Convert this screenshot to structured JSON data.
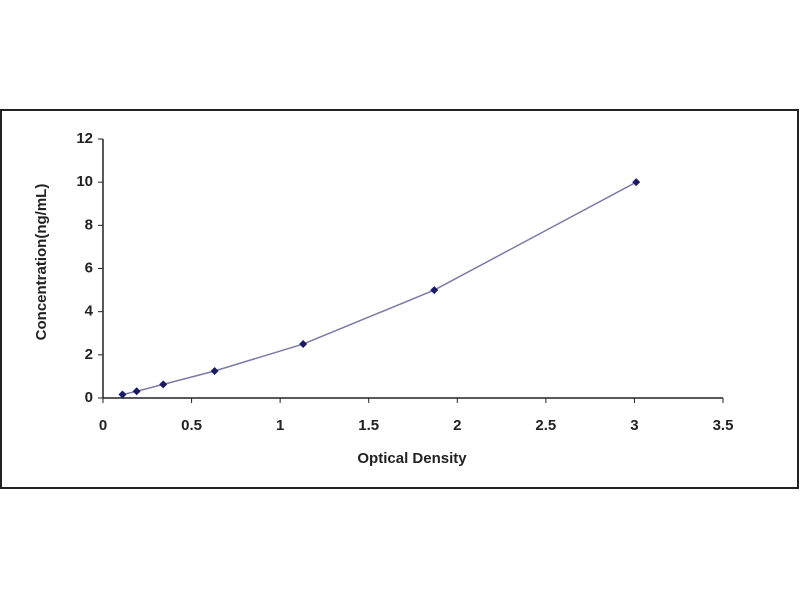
{
  "chart_data": {
    "type": "scatter",
    "x_label": "Optical Density",
    "y_label": "Concentration(ng/mL)",
    "series": [
      {
        "color": "#1a1a66",
        "line_color": "#7a7aa8",
        "x": [
          0.11,
          0.19,
          0.34,
          0.63,
          1.13,
          1.87,
          3.01
        ],
        "values": [
          0.16,
          0.31,
          0.63,
          1.25,
          2.5,
          5,
          10
        ]
      }
    ],
    "xlim": [
      0,
      3.5
    ],
    "xticks": [
      0,
      0.5,
      1,
      1.5,
      2,
      2.5,
      3,
      3.5
    ],
    "ylim": [
      0,
      12
    ],
    "yticks": [
      0,
      2,
      4,
      6,
      8,
      10,
      12
    ],
    "grid": false
  }
}
